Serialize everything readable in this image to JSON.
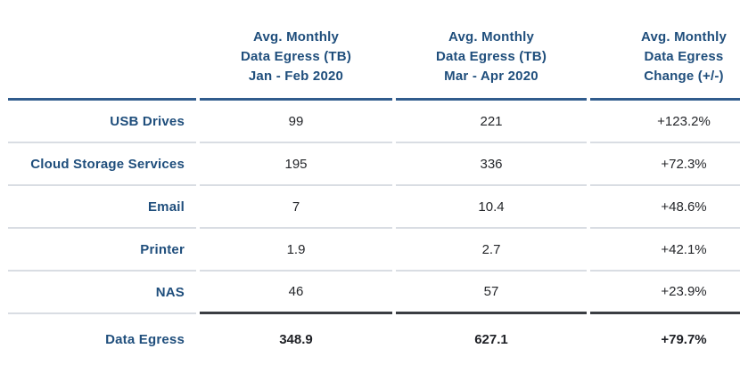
{
  "colors": {
    "header_text": "#1f4e7c",
    "header_rule": "#315c8d",
    "row_label_text": "#1f4e7c",
    "value_text": "#24262a",
    "row_separator": "#d9dde3",
    "total_rule": "#3a3d42",
    "background": "#ffffff"
  },
  "table": {
    "columns": [
      {
        "label": ""
      },
      {
        "label": "Avg. Monthly\nData Egress (TB)\nJan - Feb 2020"
      },
      {
        "label": "Avg. Monthly\nData Egress (TB)\nMar - Apr 2020"
      },
      {
        "label": "Avg. Monthly\nData Egress\nChange (+/-)"
      }
    ],
    "rows": [
      {
        "label": "USB Drives",
        "values": [
          "99",
          "221",
          "+123.2%"
        ]
      },
      {
        "label": "Cloud Storage Services",
        "values": [
          "195",
          "336",
          "+72.3%"
        ]
      },
      {
        "label": "Email",
        "values": [
          "7",
          "10.4",
          "+48.6%"
        ]
      },
      {
        "label": "Printer",
        "values": [
          "1.9",
          "2.7",
          "+42.1%"
        ]
      },
      {
        "label": "NAS",
        "values": [
          "46",
          "57",
          "+23.9%"
        ]
      }
    ],
    "total_row": {
      "label": "Data Egress",
      "values": [
        "348.9",
        "627.1",
        "+79.7%"
      ]
    }
  },
  "chart_data": {
    "type": "table",
    "title": "Avg. Monthly Data Egress comparison, Jan - Feb 2020 vs Mar - Apr 2020",
    "columns": [
      "",
      "Avg. Monthly Data Egress (TB) Jan - Feb 2020",
      "Avg. Monthly Data Egress (TB) Mar - Apr 2020",
      "Avg. Monthly Data Egress Change (+/-)"
    ],
    "rows": [
      [
        "USB Drives",
        99,
        221,
        "+123.2%"
      ],
      [
        "Cloud Storage Services",
        195,
        336,
        "+72.3%"
      ],
      [
        "Email",
        7,
        10.4,
        "+48.6%"
      ],
      [
        "Printer",
        1.9,
        2.7,
        "+42.1%"
      ],
      [
        "NAS",
        46,
        57,
        "+23.9%"
      ]
    ],
    "total_row": [
      "Data Egress",
      348.9,
      627.1,
      "+79.7%"
    ]
  }
}
